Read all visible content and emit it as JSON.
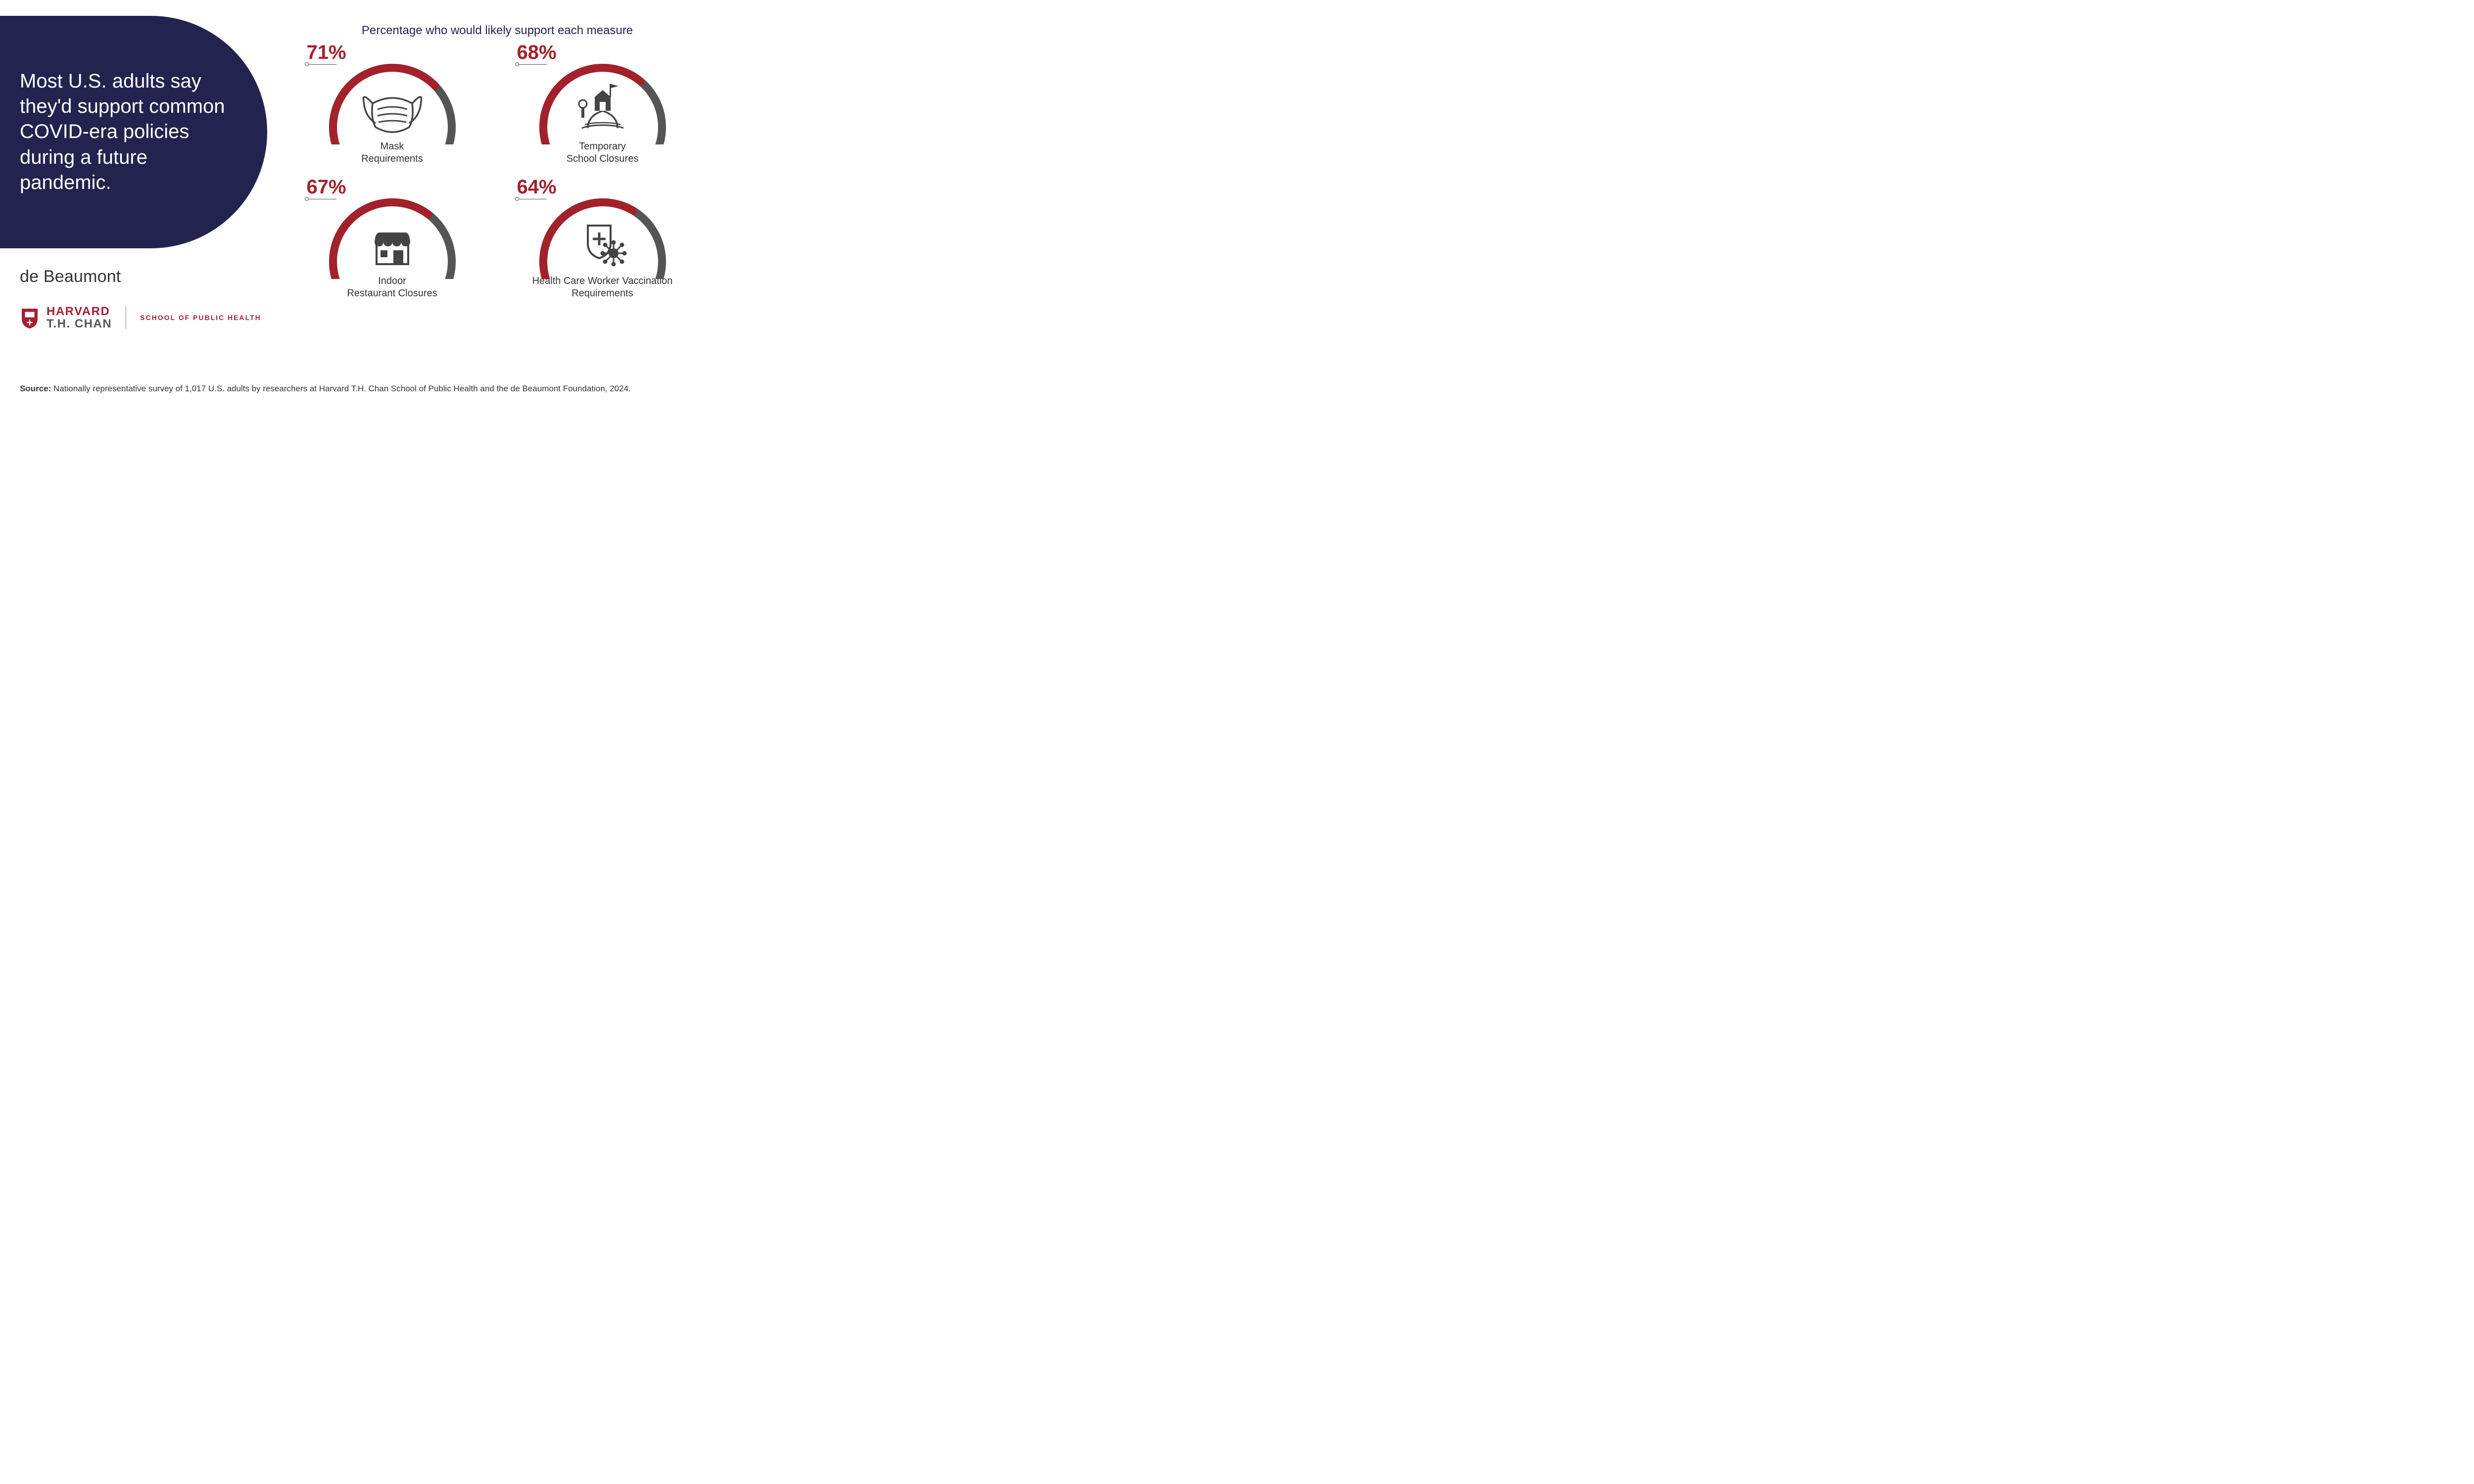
{
  "headline": "Most U.S. adults say they'd support common COVID-era policies during a future pandemic.",
  "charts_title": "Percentage who would likely support each measure",
  "colors": {
    "navy": "#22244f",
    "gauge_fill": "#a3212a",
    "gauge_track": "#555555",
    "pct_text": "#a3212a",
    "icon_stroke": "#444444",
    "body_text": "#333333",
    "background": "#ffffff",
    "harvard_red": "#a31f34"
  },
  "gauge_style": {
    "stroke_width": 16,
    "track_linecap": "round",
    "diameter": 260
  },
  "gauges": [
    {
      "percent": 71,
      "label_line1": "Mask",
      "label_line2": "Requirements",
      "icon": "mask"
    },
    {
      "percent": 68,
      "label_line1": "Temporary",
      "label_line2": "School Closures",
      "icon": "school"
    },
    {
      "percent": 67,
      "label_line1": "Indoor",
      "label_line2": "Restaurant Closures",
      "icon": "restaurant"
    },
    {
      "percent": 64,
      "label_line1": "Health Care Worker Vaccination",
      "label_line2": "Requirements",
      "icon": "vaccine"
    }
  ],
  "logos": {
    "debeaumont": "de Beaumont",
    "harvard_line1": "HARVARD",
    "harvard_line2": "T.H. CHAN",
    "harvard_subtitle": "SCHOOL OF PUBLIC HEALTH"
  },
  "source": {
    "label": "Source:",
    "text": "Nationally representative survey of 1,017 U.S. adults by researchers at Harvard T.H. Chan School of Public Health and the de Beaumont Foundation, 2024."
  },
  "typography": {
    "headline_fontsize": 40,
    "pct_fontsize": 40,
    "caption_fontsize": 20,
    "charts_title_fontsize": 24,
    "source_fontsize": 17
  }
}
